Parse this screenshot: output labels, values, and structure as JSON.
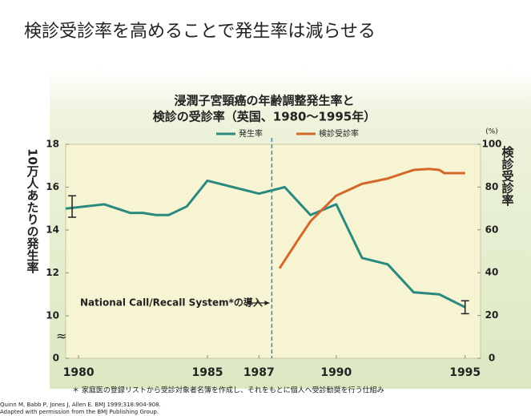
{
  "heading": "検診受診率を高めることで発生率は減らせる",
  "chart_data": {
    "type": "line",
    "title": [
      "浸潤子宮頸癌の年齢調整発生率と",
      "検診の受診率（英国、1980～1995年）"
    ],
    "y_label": "10万人あたりの発生率",
    "y2_label": "検診受診率",
    "y2_unit": "(%)",
    "xlim": [
      1979.5,
      1995.6
    ],
    "xticks": [
      1980,
      1985,
      1987,
      1990,
      1995
    ],
    "ylim": [
      0,
      18
    ],
    "ybreak": 10,
    "yticks": [
      0,
      10,
      12,
      14,
      16,
      18
    ],
    "y2lim": [
      0,
      100
    ],
    "y2ticks": [
      0,
      20,
      40,
      60,
      80,
      100
    ],
    "legend": "top",
    "vline": 1987.5,
    "annotation": "National Call/Recall System*の導入",
    "series": [
      {
        "name": "発生率",
        "color": "#2a8a80",
        "x": [
          1979.5,
          1981,
          1982,
          1982.5,
          1983,
          1983.5,
          1984.2,
          1985,
          1986,
          1987,
          1988,
          1989,
          1990,
          1991,
          1992,
          1993,
          1994,
          1995
        ],
        "values": [
          15.0,
          15.2,
          14.8,
          14.8,
          14.7,
          14.7,
          15.1,
          16.3,
          16.0,
          15.7,
          16.0,
          14.7,
          15.2,
          12.7,
          12.4,
          11.1,
          11.0,
          10.4
        ],
        "error_bars": [
          {
            "x": 1979.75,
            "value": 15.1,
            "error": 0.5
          },
          {
            "x": 1995,
            "value": 10.4,
            "error": 0.3
          }
        ]
      },
      {
        "name": "検診受診率",
        "color": "#d4672a",
        "axis": "y2",
        "x": [
          1987.8,
          1988.5,
          1989,
          1990,
          1991,
          1992,
          1993,
          1993.6,
          1994,
          1994.2,
          1995
        ],
        "values": [
          42,
          55,
          64,
          76,
          81.5,
          84,
          88,
          88.5,
          88,
          86.5,
          86.5
        ]
      }
    ]
  },
  "footnote": "＊ 家庭医の登録リストから受診対象者名簿を作成し、それをもとに個人へ受診勧奨を行う仕組み",
  "source": [
    "Quinn M, Babb P, Jones J, Allen E. BMJ 1999;318:904-908.",
    "Adapted with permission from the BMJ Publishing Group."
  ]
}
